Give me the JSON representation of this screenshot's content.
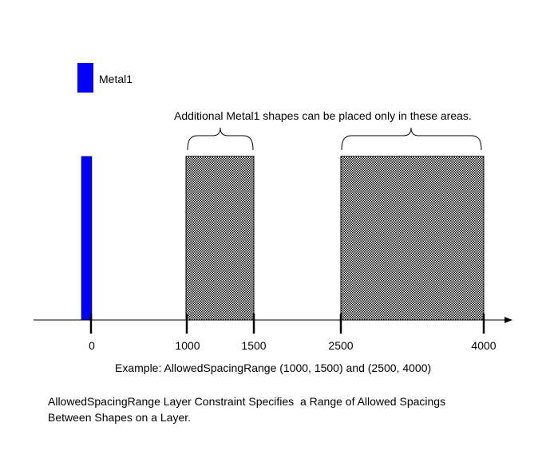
{
  "legend": {
    "label": "Metal1",
    "color": "#0000ff"
  },
  "annotation": "Additional Metal1 shapes can be placed only in these areas.",
  "axis": {
    "ticks": [
      {
        "value": 0,
        "label": "0"
      },
      {
        "value": 1000,
        "label": "1000"
      },
      {
        "value": 1500,
        "label": "1500"
      },
      {
        "value": 2500,
        "label": "2500"
      },
      {
        "value": 4000,
        "label": "4000"
      }
    ]
  },
  "allowed_ranges": [
    {
      "from": 1000,
      "to": 1500
    },
    {
      "from": 2500,
      "to": 4000
    }
  ],
  "example": "Example:  AllowedSpacingRange (1000, 1500) and (2500, 4000)",
  "caption": {
    "line1": "AllowedSpacingRange Layer Constraint Specifies  a Range of Allowed Spacings",
    "line2": "Between Shapes on a Layer."
  },
  "colors": {
    "metal": "#0000ff",
    "hatch": "#000000",
    "axis": "#000000"
  }
}
